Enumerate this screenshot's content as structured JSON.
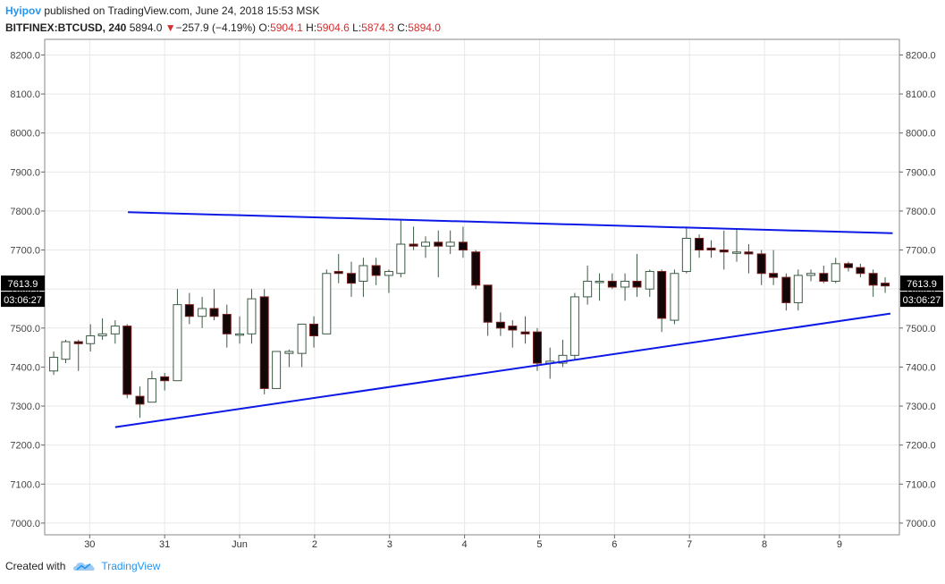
{
  "header": {
    "author": "Hyipov",
    "published_text": " published on TradingView.com, June 24, 2018 15:53 MSK",
    "symbol": "BITFINEX:BTCUSD, 240",
    "last": "5894.0",
    "change_arrow": "▼",
    "change": "−257.9 (−4.19%)",
    "o_label": "O:",
    "o_value": "5904.1",
    "h_label": "H:",
    "h_value": "5904.6",
    "l_label": "L:",
    "l_value": "5874.3",
    "c_label": "C:",
    "c_value": "5894.0"
  },
  "footer": {
    "created_with": "Created with",
    "brand": "TradingView",
    "logo_icon": "tradingview-cloud-icon"
  },
  "colors": {
    "up_fill": "#ffffff",
    "candle_stroke": "#3d5a45",
    "down_fill": "#120608",
    "trendline": "#0d19e6",
    "grid": "#e8e8e8",
    "badge_bg": "#000000",
    "header_red": "#d32f2f",
    "author_blue": "#2196f3"
  },
  "chart_data": {
    "type": "candlestick",
    "price_axis": [
      "8200.0",
      "8100.0",
      "8000.0",
      "7900.0",
      "7800.0",
      "7700.0",
      "7600.0",
      "7500.0",
      "7400.0",
      "7300.0",
      "7200.0",
      "7100.0",
      "7000.0"
    ],
    "ylim": [
      6970,
      8240
    ],
    "grid": true,
    "x_labels": [
      "30",
      "31",
      "Jun",
      "2",
      "3",
      "4",
      "5",
      "6",
      "7",
      "8",
      "9"
    ],
    "x_label_positions": [
      -0.01,
      0.99,
      1.99,
      2.99,
      3.99,
      4.99,
      5.99,
      6.99,
      7.99,
      8.99,
      9.99
    ],
    "xlim": [
      -0.61,
      10.79
    ],
    "last_price_badge": "7613.9",
    "countdown_badge": "03:06:27",
    "last_price": 7613.9,
    "candles": [
      {
        "t": -0.49,
        "o": 7390,
        "h": 7440,
        "l": 7380,
        "c": 7425
      },
      {
        "t": -0.33,
        "o": 7420,
        "h": 7470,
        "l": 7410,
        "c": 7465
      },
      {
        "t": -0.16,
        "o": 7465,
        "h": 7470,
        "l": 7390,
        "c": 7460
      },
      {
        "t": 0.0,
        "o": 7460,
        "h": 7510,
        "l": 7440,
        "c": 7480
      },
      {
        "t": 0.16,
        "o": 7480,
        "h": 7525,
        "l": 7470,
        "c": 7485
      },
      {
        "t": 0.33,
        "o": 7485,
        "h": 7520,
        "l": 7460,
        "c": 7505
      },
      {
        "t": 0.49,
        "o": 7505,
        "h": 7510,
        "l": 7320,
        "c": 7330
      },
      {
        "t": 0.66,
        "o": 7325,
        "h": 7350,
        "l": 7270,
        "c": 7305
      },
      {
        "t": 0.82,
        "o": 7310,
        "h": 7390,
        "l": 7310,
        "c": 7370
      },
      {
        "t": 0.99,
        "o": 7375,
        "h": 7385,
        "l": 7340,
        "c": 7365
      },
      {
        "t": 1.16,
        "o": 7365,
        "h": 7600,
        "l": 7365,
        "c": 7560
      },
      {
        "t": 1.32,
        "o": 7560,
        "h": 7590,
        "l": 7510,
        "c": 7530
      },
      {
        "t": 1.49,
        "o": 7530,
        "h": 7580,
        "l": 7500,
        "c": 7550
      },
      {
        "t": 1.65,
        "o": 7550,
        "h": 7600,
        "l": 7520,
        "c": 7530
      },
      {
        "t": 1.82,
        "o": 7535,
        "h": 7560,
        "l": 7450,
        "c": 7485
      },
      {
        "t": 1.99,
        "o": 7485,
        "h": 7530,
        "l": 7460,
        "c": 7485
      },
      {
        "t": 2.15,
        "o": 7485,
        "h": 7600,
        "l": 7460,
        "c": 7575
      },
      {
        "t": 2.32,
        "o": 7580,
        "h": 7600,
        "l": 7330,
        "c": 7345
      },
      {
        "t": 2.48,
        "o": 7345,
        "h": 7440,
        "l": 7345,
        "c": 7440
      },
      {
        "t": 2.65,
        "o": 7435,
        "h": 7445,
        "l": 7400,
        "c": 7440
      },
      {
        "t": 2.82,
        "o": 7435,
        "h": 7510,
        "l": 7400,
        "c": 7510
      },
      {
        "t": 2.98,
        "o": 7510,
        "h": 7530,
        "l": 7450,
        "c": 7480
      },
      {
        "t": 3.15,
        "o": 7485,
        "h": 7650,
        "l": 7485,
        "c": 7640
      },
      {
        "t": 3.31,
        "o": 7645,
        "h": 7690,
        "l": 7615,
        "c": 7640
      },
      {
        "t": 3.48,
        "o": 7640,
        "h": 7670,
        "l": 7580,
        "c": 7615
      },
      {
        "t": 3.64,
        "o": 7620,
        "h": 7680,
        "l": 7580,
        "c": 7660
      },
      {
        "t": 3.81,
        "o": 7660,
        "h": 7680,
        "l": 7610,
        "c": 7635
      },
      {
        "t": 3.98,
        "o": 7635,
        "h": 7650,
        "l": 7590,
        "c": 7645
      },
      {
        "t": 4.14,
        "o": 7640,
        "h": 7780,
        "l": 7630,
        "c": 7715
      },
      {
        "t": 4.31,
        "o": 7715,
        "h": 7760,
        "l": 7700,
        "c": 7710
      },
      {
        "t": 4.47,
        "o": 7710,
        "h": 7735,
        "l": 7680,
        "c": 7720
      },
      {
        "t": 4.64,
        "o": 7720,
        "h": 7750,
        "l": 7630,
        "c": 7710
      },
      {
        "t": 4.8,
        "o": 7710,
        "h": 7750,
        "l": 7690,
        "c": 7720
      },
      {
        "t": 4.97,
        "o": 7720,
        "h": 7760,
        "l": 7680,
        "c": 7700
      },
      {
        "t": 5.14,
        "o": 7695,
        "h": 7700,
        "l": 7600,
        "c": 7610
      },
      {
        "t": 5.3,
        "o": 7610,
        "h": 7610,
        "l": 7480,
        "c": 7515
      },
      {
        "t": 5.47,
        "o": 7515,
        "h": 7540,
        "l": 7480,
        "c": 7500
      },
      {
        "t": 5.63,
        "o": 7505,
        "h": 7520,
        "l": 7450,
        "c": 7495
      },
      {
        "t": 5.8,
        "o": 7490,
        "h": 7530,
        "l": 7460,
        "c": 7485
      },
      {
        "t": 5.96,
        "o": 7490,
        "h": 7500,
        "l": 7390,
        "c": 7410
      },
      {
        "t": 6.13,
        "o": 7410,
        "h": 7450,
        "l": 7370,
        "c": 7415
      },
      {
        "t": 6.3,
        "o": 7410,
        "h": 7470,
        "l": 7400,
        "c": 7430
      },
      {
        "t": 6.46,
        "o": 7430,
        "h": 7590,
        "l": 7420,
        "c": 7580
      },
      {
        "t": 6.63,
        "o": 7580,
        "h": 7660,
        "l": 7560,
        "c": 7620
      },
      {
        "t": 6.79,
        "o": 7620,
        "h": 7640,
        "l": 7570,
        "c": 7620
      },
      {
        "t": 6.96,
        "o": 7620,
        "h": 7640,
        "l": 7600,
        "c": 7605
      },
      {
        "t": 7.13,
        "o": 7605,
        "h": 7640,
        "l": 7570,
        "c": 7620
      },
      {
        "t": 7.29,
        "o": 7620,
        "h": 7690,
        "l": 7580,
        "c": 7605
      },
      {
        "t": 7.46,
        "o": 7600,
        "h": 7650,
        "l": 7580,
        "c": 7645
      },
      {
        "t": 7.62,
        "o": 7645,
        "h": 7650,
        "l": 7490,
        "c": 7525
      },
      {
        "t": 7.79,
        "o": 7520,
        "h": 7650,
        "l": 7510,
        "c": 7640
      },
      {
        "t": 7.95,
        "o": 7645,
        "h": 7760,
        "l": 7640,
        "c": 7730
      },
      {
        "t": 8.12,
        "o": 7730,
        "h": 7740,
        "l": 7680,
        "c": 7700
      },
      {
        "t": 8.28,
        "o": 7705,
        "h": 7725,
        "l": 7680,
        "c": 7700
      },
      {
        "t": 8.45,
        "o": 7700,
        "h": 7750,
        "l": 7650,
        "c": 7695
      },
      {
        "t": 8.62,
        "o": 7695,
        "h": 7755,
        "l": 7670,
        "c": 7695
      },
      {
        "t": 8.78,
        "o": 7695,
        "h": 7715,
        "l": 7640,
        "c": 7690
      },
      {
        "t": 8.95,
        "o": 7690,
        "h": 7700,
        "l": 7610,
        "c": 7640
      },
      {
        "t": 9.11,
        "o": 7640,
        "h": 7700,
        "l": 7610,
        "c": 7630
      },
      {
        "t": 9.28,
        "o": 7630,
        "h": 7640,
        "l": 7545,
        "c": 7565
      },
      {
        "t": 9.44,
        "o": 7565,
        "h": 7650,
        "l": 7545,
        "c": 7635
      },
      {
        "t": 9.61,
        "o": 7635,
        "h": 7650,
        "l": 7620,
        "c": 7640
      },
      {
        "t": 9.78,
        "o": 7640,
        "h": 7660,
        "l": 7615,
        "c": 7620
      },
      {
        "t": 9.94,
        "o": 7620,
        "h": 7680,
        "l": 7615,
        "c": 7665
      },
      {
        "t": 10.11,
        "o": 7665,
        "h": 7670,
        "l": 7645,
        "c": 7655
      },
      {
        "t": 10.27,
        "o": 7655,
        "h": 7665,
        "l": 7630,
        "c": 7640
      },
      {
        "t": 10.44,
        "o": 7640,
        "h": 7650,
        "l": 7580,
        "c": 7610
      },
      {
        "t": 10.6,
        "o": 7615,
        "h": 7630,
        "l": 7590,
        "c": 7608
      }
    ],
    "trendlines": [
      {
        "name": "resistance",
        "x1": 0.5,
        "y1": 7797,
        "x2": 10.7,
        "y2": 7743
      },
      {
        "name": "support",
        "x1": 0.33,
        "y1": 7246,
        "x2": 10.67,
        "y2": 7537
      }
    ]
  }
}
